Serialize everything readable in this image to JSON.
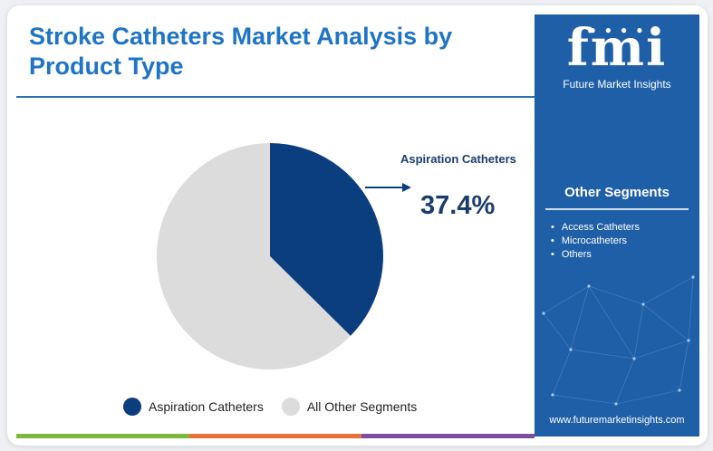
{
  "title": "Stroke Catheters Market Analysis by Product Type",
  "callout": {
    "label": "Aspiration Catheters",
    "value": "37.4%"
  },
  "legend": [
    {
      "label": "Aspiration Catheters",
      "color": "#0b3e7e"
    },
    {
      "label": "All Other Segments",
      "color": "#dcdcdc"
    }
  ],
  "chart_data": {
    "type": "pie",
    "slices": [
      {
        "label": "Aspiration Catheters",
        "value": 37.4,
        "color": "#0b3e7e"
      },
      {
        "label": "All Other Segments",
        "value": 62.6,
        "color": "#dcdcdc"
      }
    ],
    "annotations": [
      "Aspiration Catheters",
      "37.4%"
    ]
  },
  "sidebar": {
    "logo_text": "fmi",
    "logo_subtitle": "Future Market Insights",
    "segments_title": "Other Segments",
    "segments": [
      "Access Catheters",
      "Microcatheters",
      "Others"
    ],
    "website": "www.futuremarketinsights.com"
  },
  "colors": {
    "accent_blue": "#1f74c6",
    "panel_blue": "#1f5fa8",
    "bar_green": "#7cb83e",
    "bar_orange": "#e8713c",
    "bar_purple": "#7a4fa0"
  }
}
